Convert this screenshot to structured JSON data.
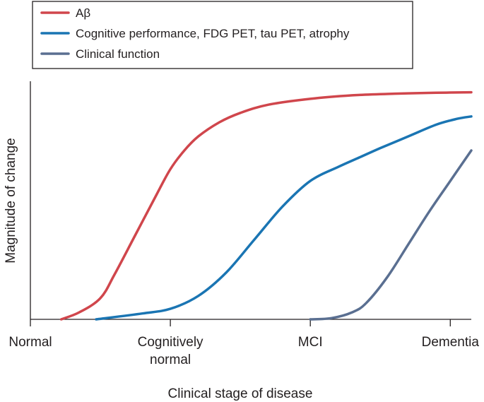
{
  "chart_data": {
    "type": "line",
    "title": "",
    "xlabel": "Clinical stage of disease",
    "ylabel": "Magnitude of change",
    "categories": [
      "Normal",
      "Cognitively normal",
      "MCI",
      "Dementia"
    ],
    "x_tick_labels": [
      [
        "Normal"
      ],
      [
        "Cognitively",
        "normal"
      ],
      [
        "MCI"
      ],
      [
        "Dementia"
      ]
    ],
    "xlim": [
      0,
      3.15
    ],
    "ylim": [
      0,
      1
    ],
    "grid": false,
    "legend_position": "top-left",
    "series": [
      {
        "name": "Aβ",
        "color": "#d0464c",
        "x": [
          0.22,
          0.35,
          0.5,
          0.6,
          0.75,
          0.9,
          1.0,
          1.1,
          1.2,
          1.35,
          1.5,
          1.7,
          2.0,
          2.3,
          2.6,
          2.9,
          3.15
        ],
        "y": [
          0.0,
          0.03,
          0.09,
          0.19,
          0.36,
          0.53,
          0.64,
          0.72,
          0.78,
          0.84,
          0.88,
          0.915,
          0.94,
          0.955,
          0.962,
          0.966,
          0.968
        ]
      },
      {
        "name": "Cognitive performance, FDG PET, tau PET, atrophy",
        "color": "#1a75b3",
        "x": [
          0.47,
          0.8,
          1.0,
          1.2,
          1.4,
          1.6,
          1.8,
          2.0,
          2.2,
          2.35,
          2.5,
          2.7,
          2.9,
          3.05,
          3.15
        ],
        "y": [
          0.0,
          0.025,
          0.045,
          0.1,
          0.2,
          0.34,
          0.48,
          0.59,
          0.65,
          0.69,
          0.73,
          0.78,
          0.83,
          0.855,
          0.865
        ]
      },
      {
        "name": "Clinical function",
        "color": "#5a6f91",
        "x": [
          2.0,
          2.15,
          2.3,
          2.4,
          2.55,
          2.7,
          2.85,
          3.0,
          3.15
        ],
        "y": [
          0.0,
          0.005,
          0.03,
          0.07,
          0.18,
          0.32,
          0.46,
          0.59,
          0.72
        ]
      }
    ]
  }
}
